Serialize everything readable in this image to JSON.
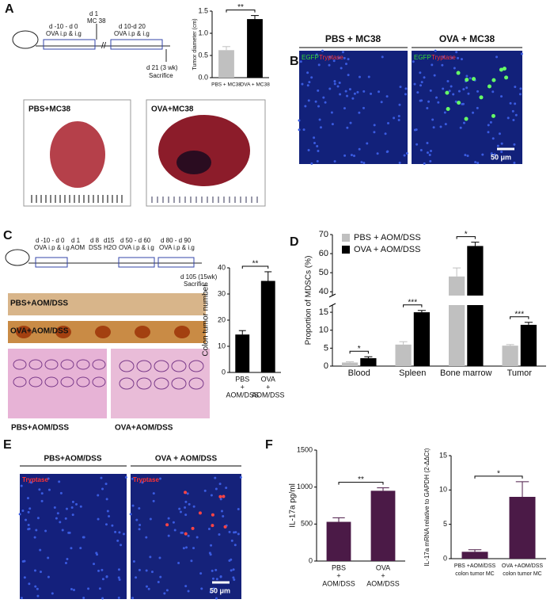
{
  "figure": {
    "panel_labels": [
      "A",
      "B",
      "C",
      "D",
      "E",
      "F"
    ],
    "a_timeline": [
      "d -10 - d 0",
      "OVA i.p & i.g",
      "d 1",
      "MC 38",
      "d 10-d 20",
      "OVA i.p & i.g",
      "d 21 (3 wk)",
      "Sacrifice"
    ],
    "a_photos": [
      "PBS+MC38",
      "OVA+MC38"
    ],
    "b_headers": [
      "PBS + MC38",
      "OVA + MC38"
    ],
    "b_stains": [
      "EGFP",
      "Tryptase"
    ],
    "b_scale": "50 μm",
    "c_timeline": [
      "d -10 - d 0",
      "OVA i.p & i.g",
      "d 1",
      "AOM",
      "d 8",
      "DSS",
      "d15",
      "H2O",
      "d 50 - d 60",
      "OVA i.p & i.g",
      "d 80 - d 90",
      "OVA i.p & i.g",
      "d 105 (15wk)",
      "Sacrifice"
    ],
    "c_colons": [
      "PBS+AOM/DSS",
      "OVA+AOM/DSS"
    ],
    "c_histology": [
      "PBS+AOM/DSS",
      "OVA+AOM/DSS"
    ],
    "e_headers": [
      "PBS+AOM/DSS",
      "OVA + AOM/DSS"
    ],
    "e_stain": "Tryptase",
    "e_scale": "50 μm"
  },
  "chart_data": [
    {
      "type": "bar",
      "ylabel": "Tumor diameter (cm)",
      "categories": [
        "PBS + MC38",
        "OVA + MC38"
      ],
      "values": [
        0.62,
        1.32
      ],
      "errors": [
        0.08,
        0.08
      ],
      "colors": [
        "#c0c0c0",
        "#000000"
      ],
      "ylim": [
        0,
        1.5
      ],
      "yticks": [
        {
          "value": 0,
          "label": "0.0"
        },
        0.5,
        {
          "value": 1,
          "label": "1.0"
        },
        1.5
      ],
      "significance": [
        "**"
      ]
    },
    {
      "type": "bar",
      "ylabel": "Colon tumor number",
      "categories": [
        [
          "PBS",
          "+",
          "AOM/DSS"
        ],
        [
          "OVA",
          "+",
          "AOM/DSS"
        ]
      ],
      "values": [
        14.5,
        35
      ],
      "errors": [
        1.5,
        3.5
      ],
      "colors": [
        "#000000",
        "#000000"
      ],
      "ylim": [
        0,
        40
      ],
      "yticks": [
        0,
        10,
        20,
        30,
        40
      ],
      "significance": [
        "**"
      ]
    },
    {
      "type": "grouped-bar",
      "ylabel": "Proportion of MDSCs (%)",
      "categories": [
        "Blood",
        "Spleen",
        "Bone marrow",
        "Tumor"
      ],
      "series": [
        {
          "name": "PBS + AOM/DSS",
          "color": "#c0c0c0",
          "values": [
            1,
            6,
            48,
            5.7
          ],
          "errors": [
            0.2,
            0.8,
            4.5,
            0.3
          ]
        },
        {
          "name": "OVA + AOM/DSS",
          "color": "#000000",
          "values": [
            2.2,
            15,
            64,
            11.5
          ],
          "errors": [
            0.4,
            0.5,
            2,
            0.7
          ]
        }
      ],
      "ylim": [
        0,
        70
      ],
      "ybreak": [
        17,
        38
      ],
      "yticks": [
        0,
        5,
        10,
        15,
        40,
        50,
        60,
        70
      ],
      "significance": [
        "*",
        "***",
        "*",
        "***"
      ],
      "legend": "upper left"
    },
    {
      "type": "bar",
      "ylabel": "IL-17a pg/ml",
      "categories": [
        [
          "PBS",
          "+",
          "AOM/DSS"
        ],
        [
          "OVA",
          "+",
          "AOM/DSS"
        ]
      ],
      "values": [
        530,
        950
      ],
      "errors": [
        55,
        40
      ],
      "colors": [
        "#4b1a47",
        "#4b1a47"
      ],
      "ylim": [
        0,
        1500
      ],
      "yticks": [
        0,
        500,
        1000,
        1500
      ],
      "significance": [
        "**"
      ]
    },
    {
      "type": "bar",
      "ylabel": "IL-17a mRNA relative to GAPDH (2-ΔΔCt)",
      "categories": [
        [
          "PBS +AOM/DSS",
          "colon tumor MC"
        ],
        [
          "OVA +AOM/DSS",
          "colon tumor MC"
        ]
      ],
      "values": [
        1,
        9
      ],
      "errors": [
        0.3,
        2.2
      ],
      "colors": [
        "#4b1a47",
        "#4b1a47"
      ],
      "ylim": [
        0,
        15
      ],
      "yticks": [
        0,
        5,
        10,
        15
      ],
      "significance": [
        "*"
      ]
    }
  ]
}
